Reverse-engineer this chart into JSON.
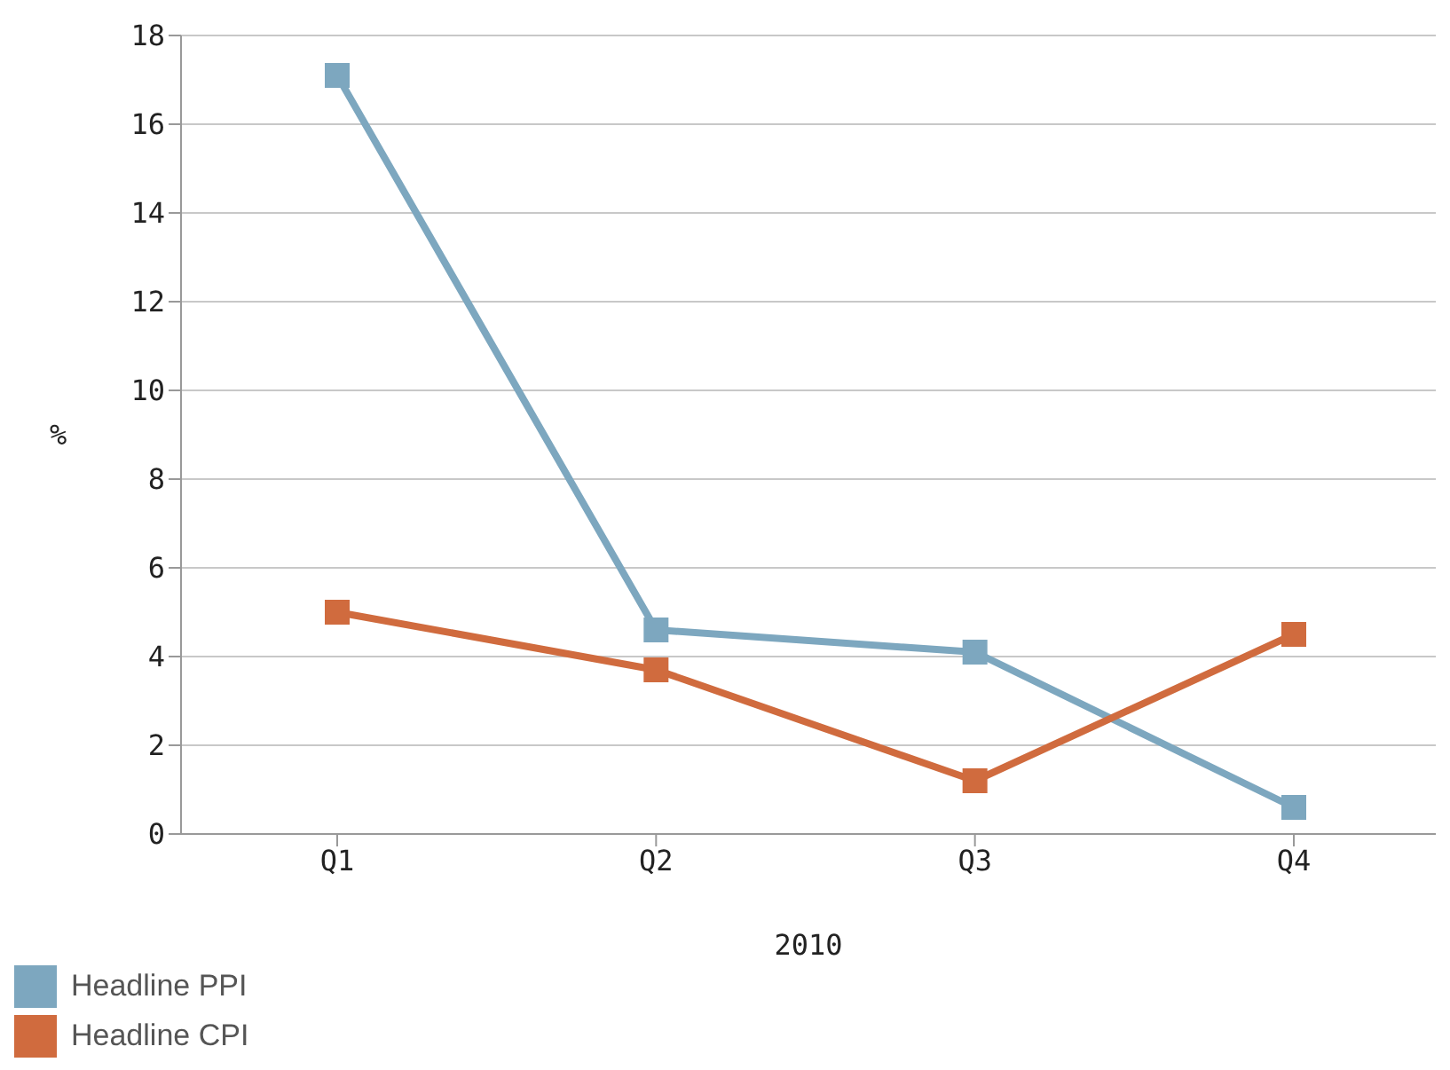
{
  "chart_data": {
    "type": "line",
    "xlabel": "2010",
    "ylabel": "%",
    "categories": [
      "Q1",
      "Q2",
      "Q3",
      "Q4"
    ],
    "series": [
      {
        "name": "Headline PPI",
        "color": "#7da7bf",
        "values": [
          17.1,
          4.6,
          4.1,
          0.6
        ]
      },
      {
        "name": "Headline CPI",
        "color": "#d06b3e",
        "values": [
          5.0,
          3.7,
          1.2,
          4.5
        ]
      }
    ],
    "ylim": [
      0,
      18
    ],
    "yticks": [
      0,
      2,
      4,
      6,
      8,
      10,
      12,
      14,
      16,
      18
    ],
    "grid": "y",
    "legend": "bottom left",
    "marker": "square",
    "line_style": "solid"
  }
}
